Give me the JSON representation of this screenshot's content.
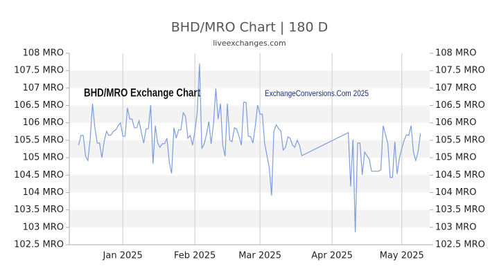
{
  "chart_data": {
    "type": "line",
    "title": "BHD/MRO Chart | 180 D",
    "subtitle": "liveexchanges.com",
    "annotations": [
      "BHD/MRO Exchange Chart",
      "ExchangeConversions.Com 2025"
    ],
    "xlim": [
      8,
      163
    ],
    "xticks": [
      {
        "value": 31,
        "label": "Jan 2025"
      },
      {
        "value": 62,
        "label": "Feb 2025"
      },
      {
        "value": 90,
        "label": "Mar 2025"
      },
      {
        "value": 121,
        "label": "Apr 2025"
      },
      {
        "value": 151,
        "label": "May 2025"
      }
    ],
    "ylim": [
      102.5,
      108
    ],
    "yticks": [
      {
        "value": 102.5,
        "label": "102.5 MRO"
      },
      {
        "value": 103,
        "label": "103 MRO"
      },
      {
        "value": 103.5,
        "label": "103.5 MRO"
      },
      {
        "value": 104,
        "label": "104 MRO"
      },
      {
        "value": 104.5,
        "label": "104.5 MRO"
      },
      {
        "value": 105,
        "label": "105 MRO"
      },
      {
        "value": 105.5,
        "label": "105.5 MRO"
      },
      {
        "value": 106,
        "label": "106 MRO"
      },
      {
        "value": 106.5,
        "label": "106.5 MRO"
      },
      {
        "value": 107,
        "label": "107 MRO"
      },
      {
        "value": 107.5,
        "label": "107.5 MRO"
      },
      {
        "value": 108,
        "label": "108 MRO"
      }
    ],
    "grid": true,
    "series": [
      {
        "color": "#7b9be0",
        "x": [
          12,
          13,
          14,
          15,
          16,
          17,
          18,
          19,
          20,
          21,
          22,
          23,
          24,
          25,
          26,
          27,
          28,
          29,
          30,
          31,
          32,
          33,
          34,
          35,
          36,
          37,
          38,
          39,
          40,
          41,
          42,
          43,
          44,
          45,
          46,
          47,
          48,
          49,
          50,
          51,
          52,
          53,
          54,
          55,
          56,
          57,
          58,
          59,
          60,
          61,
          62,
          63,
          64,
          65,
          66,
          67,
          68,
          69,
          70,
          71,
          72,
          73,
          74,
          75,
          76,
          77,
          78,
          79,
          80,
          81,
          82,
          83,
          84,
          85,
          86,
          87,
          88,
          89,
          90,
          91,
          92,
          93,
          94,
          95,
          96,
          97,
          98,
          99,
          100,
          101,
          102,
          103,
          104,
          105,
          106,
          107,
          108,
          128,
          129,
          130,
          131,
          132,
          133,
          134,
          135,
          136,
          137,
          138,
          139,
          140,
          141,
          142,
          143,
          144,
          145,
          146,
          147,
          148,
          149,
          150,
          151,
          152,
          153,
          154,
          155,
          156,
          157,
          158,
          159
        ],
        "values": [
          105.36,
          105.64,
          105.64,
          105.04,
          104.92,
          105.56,
          106.55,
          105.86,
          105.42,
          105.42,
          105.0,
          105.46,
          105.76,
          105.64,
          105.66,
          105.76,
          105.8,
          105.92,
          106.0,
          105.62,
          105.62,
          106.43,
          106.11,
          106.11,
          105.86,
          105.86,
          106.06,
          105.72,
          105.42,
          105.82,
          105.84,
          106.51,
          104.83,
          105.92,
          105.42,
          105.3,
          105.4,
          105.4,
          105.56,
          104.86,
          104.55,
          105.86,
          105.56,
          105.8,
          105.8,
          106.29,
          106.19,
          105.56,
          105.64,
          105.36,
          105.76,
          106.29,
          107.7,
          105.26,
          105.4,
          105.66,
          106.04,
          105.4,
          105.96,
          106.99,
          106.11,
          106.55,
          105.36,
          105.04,
          106.55,
          105.5,
          105.46,
          105.86,
          105.82,
          105.62,
          105.36,
          106.59,
          106.59,
          105.62,
          105.6,
          105.42,
          105.92,
          106.51,
          106.25,
          106.25,
          105.42,
          105.06,
          104.71,
          103.91,
          105.76,
          105.94,
          105.84,
          105.76,
          105.22,
          105.3,
          105.6,
          105.56,
          105.36,
          105.3,
          105.5,
          105.36,
          105.06,
          105.72,
          104.17,
          105.52,
          102.86,
          105.42,
          105.42,
          104.51,
          105.16,
          105.06,
          104.96,
          104.61,
          104.61,
          104.61,
          104.61,
          104.65,
          105.92,
          105.66,
          105.4,
          104.43,
          104.43,
          105.46,
          104.53,
          105.0,
          105.26,
          105.5,
          105.66,
          105.64,
          105.92,
          105.16,
          104.92,
          105.16,
          105.7
        ]
      }
    ]
  }
}
